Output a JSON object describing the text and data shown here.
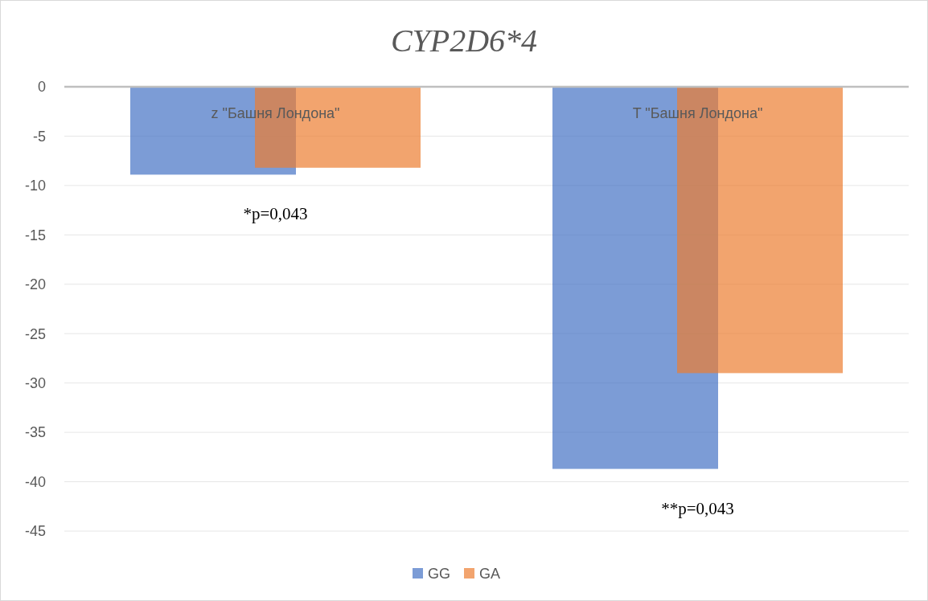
{
  "chart_data": {
    "type": "bar",
    "title": "CYP2D6*4",
    "categories": [
      "z \"Башня Лондона\"",
      "T \"Башня Лондона\""
    ],
    "series": [
      {
        "name": "GG",
        "color": "#4472c4",
        "values": [
          -8.9,
          -38.7
        ]
      },
      {
        "name": "GA",
        "color": "#ed7d31",
        "values": [
          -8.2,
          -29.0
        ]
      }
    ],
    "ylim": [
      -45,
      0
    ],
    "yticks": [
      0,
      -5,
      -10,
      -15,
      -20,
      -25,
      -30,
      -35,
      -40,
      -45
    ],
    "grid": "y",
    "legend": "bottom",
    "annotations": [
      "*p=0,043",
      "**p=0,043"
    ]
  }
}
